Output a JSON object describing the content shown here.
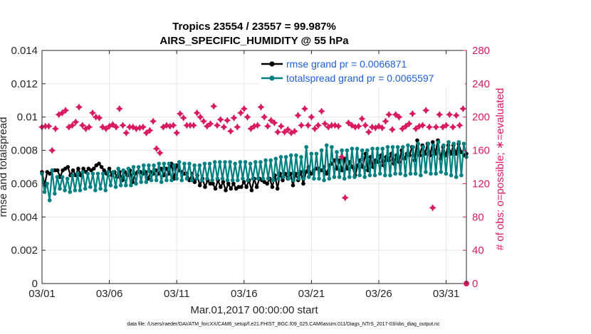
{
  "chart_data": {
    "type": "line",
    "title_lines": [
      "Tropics 23554 / 23557 = 99.987%",
      "AIRS_SPECIFIC_HUMIDITY @ 55 hPa"
    ],
    "xlabel": "Mar.01,2017 00:00:00 start",
    "ylabel": "rmse and totalspread",
    "y2label": "# of obs: o=possible; ∗=evaluated",
    "footnote": "data file: /Users/raeder/DAI/ATM_forcXX/CAM6_setup/f.e21.FHIST_BGC.f09_025.CAM6assim.011/Diags_NTrS_2017-03/obs_diag_output.nc",
    "xlim": [
      0,
      31.5
    ],
    "ylim": [
      0,
      0.014
    ],
    "y2lim": [
      0,
      280
    ],
    "x_ticks": [
      0,
      5,
      10,
      15,
      20,
      25,
      30
    ],
    "x_tick_labels": [
      "03/01",
      "03/06",
      "03/11",
      "03/16",
      "03/21",
      "03/26",
      "03/31"
    ],
    "y_ticks": [
      0,
      0.002,
      0.004,
      0.006,
      0.008,
      0.01,
      0.012,
      0.014
    ],
    "y_tick_labels": [
      "0",
      "0.002",
      "0.004",
      "0.006",
      "0.008",
      "0.01",
      "0.012",
      "0.014"
    ],
    "y2_ticks": [
      0,
      40,
      80,
      120,
      160,
      200,
      240,
      280
    ],
    "y2_tick_labels": [
      "0",
      "40",
      "80",
      "120",
      "160",
      "200",
      "240",
      "280"
    ],
    "grid": true,
    "legend_position": "top-right",
    "series": [
      {
        "name": "rmse grand pr = 0.0066871",
        "color": "#000000",
        "marker": "circle",
        "values": [
          0.0067,
          0.0059,
          0.0067,
          0.0066,
          0.0068,
          0.0068,
          0.0068,
          0.0064,
          0.0068,
          0.0069,
          0.007,
          0.0065,
          0.0068,
          0.0065,
          0.0069,
          0.0065,
          0.0069,
          0.0067,
          0.0069,
          0.0068,
          0.0069,
          0.0071,
          0.0072,
          0.007,
          0.0068,
          0.0066,
          0.0069,
          0.0065,
          0.0067,
          0.0064,
          0.0067,
          0.0062,
          0.0067,
          0.0065,
          0.0068,
          0.0061,
          0.0066,
          0.0067,
          0.0067,
          0.0066,
          0.0067,
          0.0063,
          0.0067,
          0.0066,
          0.0068,
          0.0066,
          0.0069,
          0.0065,
          0.0069,
          0.0066,
          0.0072,
          0.0063,
          0.0071,
          0.0068,
          0.0067,
          0.0066,
          0.0066,
          0.0062,
          0.0066,
          0.0061,
          0.0065,
          0.0059,
          0.0063,
          0.0058,
          0.0062,
          0.006,
          0.006,
          0.0057,
          0.0062,
          0.0058,
          0.0061,
          0.0056,
          0.006,
          0.0057,
          0.006,
          0.0057,
          0.0058,
          0.0058,
          0.0061,
          0.0058,
          0.0062,
          0.0056,
          0.0063,
          0.0058,
          0.0063,
          0.0062,
          0.0061,
          0.006,
          0.0063,
          0.0058,
          0.0065,
          0.0057,
          0.0066,
          0.0062,
          0.0066,
          0.0063,
          0.0066,
          0.0059,
          0.0066,
          0.0062,
          0.0067,
          0.006,
          0.0067,
          0.007,
          0.0066,
          0.0068,
          0.0069,
          0.0069,
          0.0068,
          0.007,
          0.0066,
          0.0071,
          0.0072,
          0.0074,
          0.0069,
          0.0074,
          0.0068,
          0.0075,
          0.0069,
          0.0073,
          0.007,
          0.0065,
          0.0071,
          0.0074,
          0.007,
          0.0078,
          0.0068,
          0.0076,
          0.007,
          0.0074,
          0.0073,
          0.0077,
          0.0071,
          0.0076,
          0.0074,
          0.0078,
          0.0072,
          0.0077,
          0.0073,
          0.008,
          0.0075,
          0.0078,
          0.0077,
          0.0082,
          0.0074,
          0.0086,
          0.0077,
          0.0083,
          0.0078,
          0.0084,
          0.0077,
          0.0085,
          0.0078,
          0.0086,
          0.0075,
          0.0082,
          0.0077,
          0.0083,
          0.0078,
          0.0083,
          0.0078,
          0.0084,
          0.0079,
          0.0077,
          0.0078
        ]
      },
      {
        "name": "totalspread grand pr = 0.0065597",
        "color": "#008080",
        "marker": "circle",
        "values": [
          0.0066,
          0.0055,
          0.006,
          0.005,
          0.0068,
          0.0054,
          0.0064,
          0.0057,
          0.0064,
          0.0056,
          0.0063,
          0.0055,
          0.0065,
          0.0056,
          0.0066,
          0.0056,
          0.0067,
          0.0057,
          0.0066,
          0.0058,
          0.0066,
          0.0056,
          0.0066,
          0.0057,
          0.0066,
          0.0056,
          0.0067,
          0.0059,
          0.0067,
          0.0058,
          0.0069,
          0.0059,
          0.0068,
          0.0059,
          0.0069,
          0.0059,
          0.007,
          0.006,
          0.007,
          0.0061,
          0.0071,
          0.0061,
          0.0071,
          0.0062,
          0.0071,
          0.0062,
          0.0072,
          0.0061,
          0.0072,
          0.0062,
          0.0072,
          0.0062,
          0.0071,
          0.0063,
          0.0073,
          0.0062,
          0.0072,
          0.0063,
          0.0072,
          0.0062,
          0.0071,
          0.0063,
          0.0071,
          0.0062,
          0.0072,
          0.0063,
          0.0072,
          0.0062,
          0.0073,
          0.0063,
          0.0073,
          0.0063,
          0.0073,
          0.0062,
          0.0073,
          0.0062,
          0.0072,
          0.0062,
          0.0073,
          0.0063,
          0.0073,
          0.0062,
          0.0072,
          0.0063,
          0.0073,
          0.0063,
          0.0073,
          0.0063,
          0.0074,
          0.0063,
          0.0074,
          0.0062,
          0.0075,
          0.0063,
          0.0076,
          0.0064,
          0.0076,
          0.0063,
          0.0077,
          0.0062,
          0.0077,
          0.0063,
          0.0076,
          0.0063,
          0.0082,
          0.0064,
          0.0078,
          0.0063,
          0.0078,
          0.0063,
          0.008,
          0.0062,
          0.0083,
          0.0063,
          0.0082,
          0.0064,
          0.0079,
          0.0064,
          0.008,
          0.0063,
          0.008,
          0.0064,
          0.0081,
          0.0064,
          0.0081,
          0.0065,
          0.008,
          0.0064,
          0.008,
          0.0065,
          0.0081,
          0.0065,
          0.0081,
          0.0066,
          0.0081,
          0.0065,
          0.0082,
          0.0065,
          0.0082,
          0.0066,
          0.0082,
          0.0066,
          0.0082,
          0.0065,
          0.0083,
          0.0066,
          0.0082,
          0.0066,
          0.0084,
          0.0065,
          0.0082,
          0.0067,
          0.0084,
          0.0066,
          0.0083,
          0.0066,
          0.0085,
          0.0067,
          0.0083,
          0.0066,
          0.0085,
          0.0065,
          0.0084,
          0.0064,
          0.0085,
          0.0065,
          0.0084,
          0.0076
        ]
      }
    ],
    "obs_evaluated": {
      "name": "# of obs evaluated",
      "color": "#d81b60",
      "marker": "star",
      "points": [
        [
          0.0,
          188
        ],
        [
          0.25,
          189
        ],
        [
          0.5,
          189
        ],
        [
          0.75,
          160
        ],
        [
          1.0,
          186
        ],
        [
          1.25,
          203
        ],
        [
          1.5,
          205
        ],
        [
          1.75,
          208
        ],
        [
          2.0,
          188
        ],
        [
          2.25,
          190
        ],
        [
          2.5,
          194
        ],
        [
          2.75,
          212
        ],
        [
          3.0,
          190
        ],
        [
          3.25,
          186
        ],
        [
          3.5,
          188
        ],
        [
          3.75,
          205
        ],
        [
          4.0,
          200
        ],
        [
          4.25,
          199
        ],
        [
          4.5,
          188
        ],
        [
          4.75,
          186
        ],
        [
          5.0,
          189
        ],
        [
          5.25,
          191
        ],
        [
          5.5,
          188
        ],
        [
          5.75,
          210
        ],
        [
          6.0,
          190
        ],
        [
          6.25,
          181
        ],
        [
          6.5,
          188
        ],
        [
          6.75,
          188
        ],
        [
          7.0,
          186
        ],
        [
          7.25,
          187
        ],
        [
          7.5,
          188
        ],
        [
          7.75,
          181
        ],
        [
          8.0,
          184
        ],
        [
          8.25,
          195
        ],
        [
          8.5,
          162
        ],
        [
          8.75,
          157
        ],
        [
          9.0,
          188
        ],
        [
          9.25,
          190
        ],
        [
          9.5,
          189
        ],
        [
          9.75,
          190
        ],
        [
          10.0,
          181
        ],
        [
          10.25,
          204
        ],
        [
          10.5,
          199
        ],
        [
          10.75,
          190
        ],
        [
          11.0,
          190
        ],
        [
          11.25,
          190
        ],
        [
          11.5,
          205
        ],
        [
          11.75,
          200
        ],
        [
          12.0,
          195
        ],
        [
          12.25,
          189
        ],
        [
          12.5,
          192
        ],
        [
          12.75,
          213
        ],
        [
          13.0,
          190
        ],
        [
          13.25,
          197
        ],
        [
          13.5,
          188
        ],
        [
          13.75,
          196
        ],
        [
          14.0,
          183
        ],
        [
          14.25,
          199
        ],
        [
          14.5,
          188
        ],
        [
          14.75,
          205
        ],
        [
          15.0,
          210
        ],
        [
          15.25,
          200
        ],
        [
          15.5,
          186
        ],
        [
          15.75,
          189
        ],
        [
          16.0,
          190
        ],
        [
          16.25,
          212
        ],
        [
          16.5,
          200
        ],
        [
          16.75,
          189
        ],
        [
          17.0,
          196
        ],
        [
          17.25,
          193
        ],
        [
          17.5,
          182
        ],
        [
          17.75,
          189
        ],
        [
          18.0,
          182
        ],
        [
          18.25,
          185
        ],
        [
          18.5,
          181
        ],
        [
          18.75,
          183
        ],
        [
          19.0,
          202
        ],
        [
          19.25,
          190
        ],
        [
          19.5,
          210
        ],
        [
          19.75,
          190
        ],
        [
          20.0,
          200
        ],
        [
          20.25,
          186
        ],
        [
          20.5,
          190
        ],
        [
          20.75,
          207
        ],
        [
          21.0,
          192
        ],
        [
          21.25,
          188
        ],
        [
          21.5,
          190
        ],
        [
          21.75,
          190
        ],
        [
          22.0,
          189
        ],
        [
          22.25,
          152
        ],
        [
          22.5,
          103
        ],
        [
          22.75,
          193
        ],
        [
          23.0,
          190
        ],
        [
          23.25,
          188
        ],
        [
          23.5,
          189
        ],
        [
          23.75,
          198
        ],
        [
          24.0,
          190
        ],
        [
          24.25,
          182
        ],
        [
          24.5,
          188
        ],
        [
          24.75,
          187
        ],
        [
          25.0,
          189
        ],
        [
          25.25,
          187
        ],
        [
          25.5,
          195
        ],
        [
          25.75,
          203
        ],
        [
          26.0,
          185
        ],
        [
          26.25,
          203
        ],
        [
          26.5,
          200
        ],
        [
          26.75,
          186
        ],
        [
          27.0,
          189
        ],
        [
          27.25,
          192
        ],
        [
          27.5,
          204
        ],
        [
          27.75,
          186
        ],
        [
          28.0,
          189
        ],
        [
          28.25,
          190
        ],
        [
          28.5,
          208
        ],
        [
          28.75,
          188
        ],
        [
          29.0,
          91
        ],
        [
          29.25,
          188
        ],
        [
          29.5,
          203
        ],
        [
          29.75,
          188
        ],
        [
          30.0,
          190
        ],
        [
          30.25,
          203
        ],
        [
          30.5,
          188
        ],
        [
          30.75,
          202
        ],
        [
          31.0,
          190
        ],
        [
          31.25,
          210
        ]
      ]
    },
    "obs_possible_label": "0"
  }
}
